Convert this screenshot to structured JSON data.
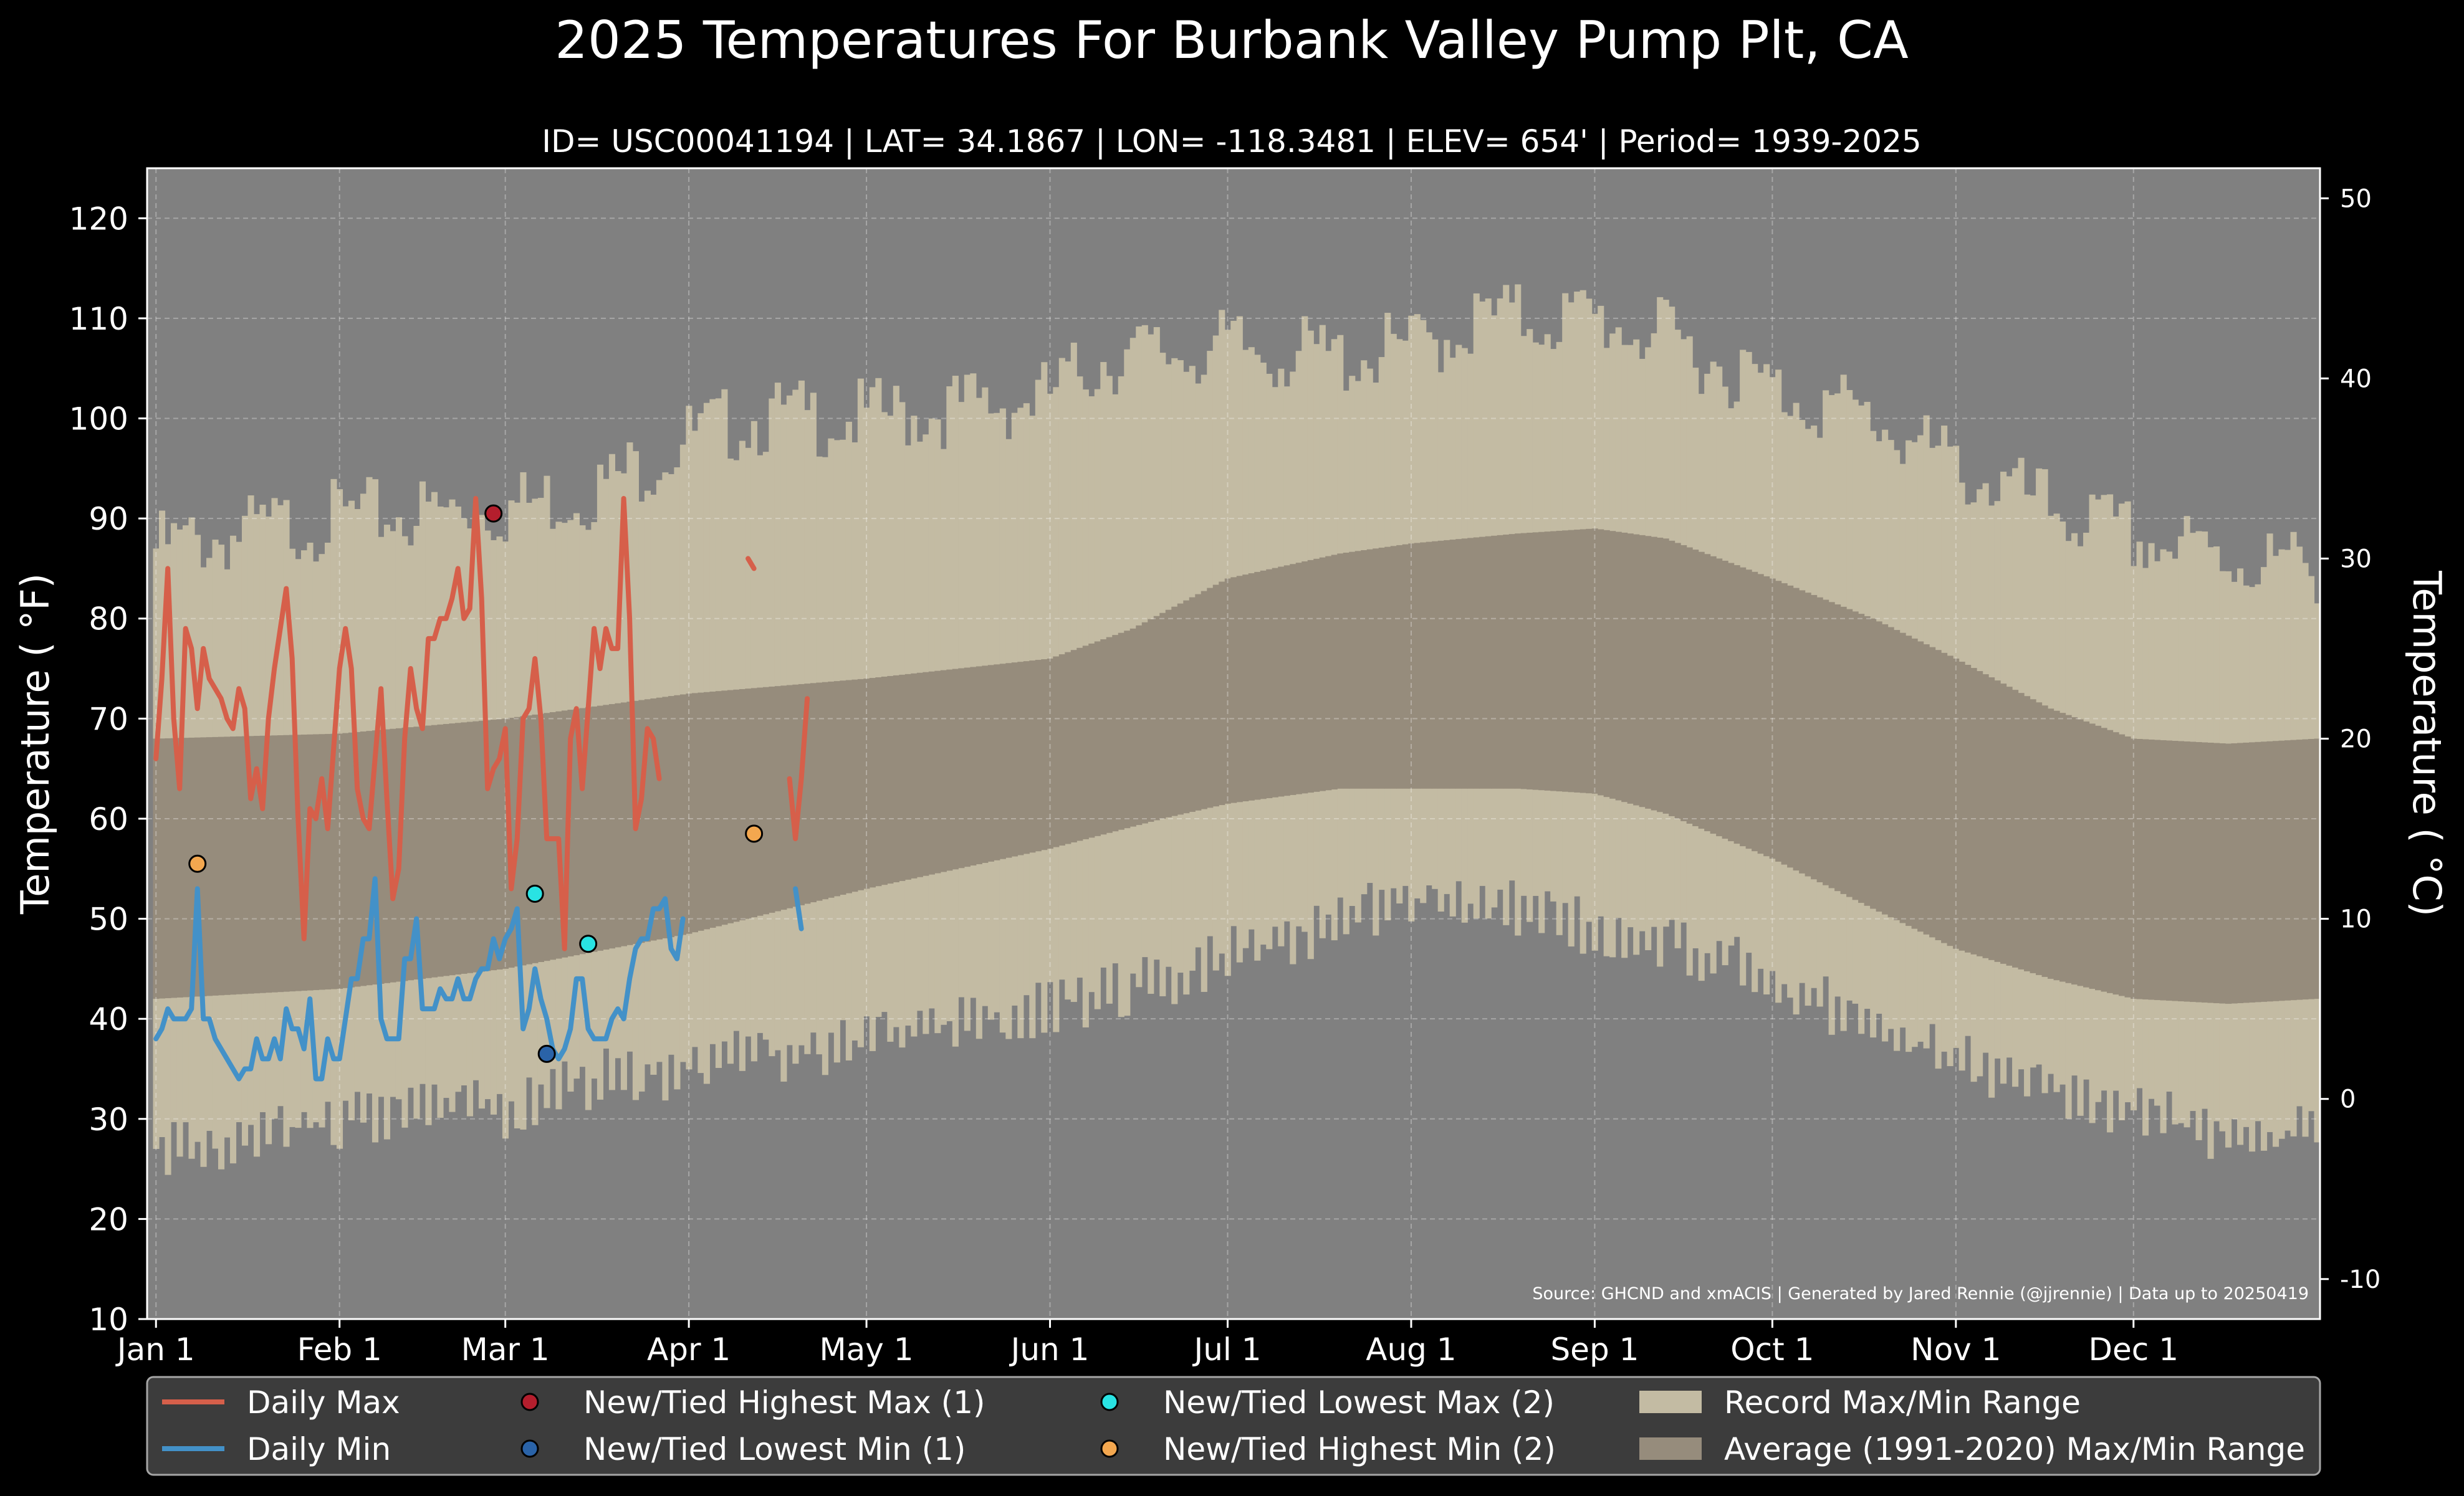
{
  "chart_data": {
    "type": "line",
    "title": "2025 Temperatures For Burbank Valley Pump Plt, CA",
    "subtitle": "ID= USC00041194 | LAT= 34.1867 | LON= -118.3481 | ELEV= 654' | Period= 1939-2025",
    "ylabel": "Temperature ( °F)",
    "ylabel_right": "Temperature ( °C)",
    "source": "Source: GHCND and xmACIS | Generated by Jared Rennie (@jjrennie) | Data up to 20250419",
    "ylim": [
      10,
      125
    ],
    "ylim_right_c": [
      -12.22,
      51.67
    ],
    "xlim_day": [
      -1.5,
      365.5
    ],
    "yticks": [
      10,
      20,
      30,
      40,
      50,
      60,
      70,
      80,
      90,
      100,
      110,
      120
    ],
    "yticks_right": [
      -10,
      0,
      10,
      20,
      30,
      40,
      50
    ],
    "xticks": [
      {
        "label": "Jan 1",
        "day": 0
      },
      {
        "label": "Feb 1",
        "day": 31
      },
      {
        "label": "Mar 1",
        "day": 59
      },
      {
        "label": "Apr 1",
        "day": 90
      },
      {
        "label": "May 1",
        "day": 120
      },
      {
        "label": "Jun 1",
        "day": 151
      },
      {
        "label": "Jul 1",
        "day": 181
      },
      {
        "label": "Aug 1",
        "day": 212
      },
      {
        "label": "Sep 1",
        "day": 243
      },
      {
        "label": "Oct 1",
        "day": 273
      },
      {
        "label": "Nov 1",
        "day": 304
      },
      {
        "label": "Dec 1",
        "day": 334
      }
    ],
    "grid": true,
    "legend_position": "below",
    "colors": {
      "background": "#000000",
      "plot_bg": "#808080",
      "record_range": "#c3bba3",
      "normal_range": "#968c7c",
      "daily_max": "#d65f4a",
      "daily_min": "#4391c8",
      "highest_max": "#b41e2d",
      "lowest_min": "#2a63a8",
      "lowest_max": "#29e3e3",
      "highest_min": "#f3a74f"
    },
    "record_max": {
      "anchors_day": [
        0,
        30,
        59,
        75,
        90,
        100,
        120,
        150,
        160,
        181,
        200,
        212,
        225,
        243,
        255,
        273,
        290,
        304,
        320,
        334,
        350,
        365
      ],
      "anchors_f": [
        87,
        90,
        91,
        93,
        98,
        100,
        100,
        102,
        106,
        107,
        106,
        107,
        110,
        110,
        108,
        103,
        100,
        95,
        91,
        88,
        86,
        85
      ]
    },
    "record_min": {
      "anchors_day": [
        0,
        15,
        31,
        50,
        59,
        75,
        90,
        110,
        130,
        150,
        170,
        190,
        212,
        230,
        243,
        260,
        273,
        290,
        304,
        320,
        334,
        350,
        365
      ],
      "anchors_f": [
        27,
        28,
        30,
        32,
        31,
        34,
        35,
        37,
        39,
        41,
        44,
        48,
        52,
        51,
        49,
        47,
        44,
        39,
        36,
        33,
        31,
        28,
        29
      ]
    },
    "normal_max": {
      "anchors_day": [
        0,
        31,
        59,
        90,
        120,
        151,
        165,
        181,
        200,
        212,
        230,
        243,
        255,
        273,
        290,
        304,
        320,
        334,
        350,
        365
      ],
      "anchors_f": [
        68,
        68.5,
        70,
        72.5,
        74,
        76,
        79,
        84,
        86.5,
        87.5,
        88.5,
        89,
        88,
        84,
        80,
        76,
        71,
        68,
        67.5,
        68
      ]
    },
    "normal_min": {
      "anchors_day": [
        0,
        31,
        59,
        90,
        120,
        151,
        170,
        181,
        200,
        212,
        230,
        243,
        255,
        273,
        290,
        304,
        320,
        334,
        350,
        365
      ],
      "anchors_f": [
        42,
        43,
        45,
        48.5,
        53,
        57,
        60,
        61.5,
        63,
        63,
        63,
        62.5,
        60.5,
        56,
        51,
        47,
        44,
        42,
        41.5,
        42
      ]
    },
    "series": [
      {
        "name": "Daily Max",
        "day": [
          0,
          1,
          2,
          3,
          4,
          5,
          6,
          7,
          8,
          9,
          10,
          11,
          12,
          13,
          14,
          15,
          16,
          17,
          18,
          19,
          20,
          21,
          22,
          23,
          24,
          25,
          26,
          27,
          28,
          29,
          30,
          31,
          32,
          33,
          34,
          35,
          36,
          37,
          38,
          39,
          40,
          41,
          42,
          43,
          44,
          45,
          46,
          47,
          48,
          49,
          50,
          51,
          52,
          53,
          54,
          55,
          56,
          57,
          58,
          59,
          60,
          61,
          62,
          63,
          64,
          65,
          66,
          67,
          68,
          69,
          70,
          71,
          72,
          73,
          74,
          75,
          76,
          77,
          78,
          79,
          80,
          81,
          82,
          83,
          84,
          85,
          86,
          87,
          88,
          89
        ],
        "values": [
          66,
          74,
          85,
          70,
          63,
          79,
          77,
          71,
          77,
          74,
          73,
          72,
          70,
          69,
          73,
          71,
          62,
          65,
          61,
          70,
          75,
          79,
          83,
          76,
          60,
          48,
          61,
          60,
          64,
          59,
          67,
          75,
          79,
          75,
          63,
          60,
          59,
          66,
          73,
          62,
          52,
          55,
          68,
          75,
          71,
          69,
          78,
          78,
          80,
          80,
          82,
          85,
          80,
          81,
          92,
          82,
          63,
          65,
          66,
          69,
          53,
          58,
          70,
          71,
          76,
          70,
          58,
          58,
          58,
          47,
          68,
          71,
          63,
          71,
          79,
          75,
          79,
          77,
          77,
          92,
          80,
          59,
          62,
          69,
          68,
          64
        ],
        "gaps": "days 86-89 not recorded"
      },
      {
        "name": "Daily Min",
        "day": [
          0,
          1,
          2,
          3,
          4,
          5,
          6,
          7,
          8,
          9,
          10,
          11,
          12,
          13,
          14,
          15,
          16,
          17,
          18,
          19,
          20,
          21,
          22,
          23,
          24,
          25,
          26,
          27,
          28,
          29,
          30,
          31,
          32,
          33,
          34,
          35,
          36,
          37,
          38,
          39,
          40,
          41,
          42,
          43,
          44,
          45,
          46,
          47,
          48,
          49,
          50,
          51,
          52,
          53,
          54,
          55,
          56,
          57,
          58,
          59,
          60,
          61,
          62,
          63,
          64,
          65,
          66,
          67,
          68,
          69,
          70,
          71,
          72,
          73,
          74,
          75,
          76,
          77,
          78,
          79,
          80,
          81,
          82,
          83,
          84,
          85,
          86,
          87,
          88,
          89
        ],
        "values": [
          38,
          39,
          41,
          40,
          40,
          40,
          41,
          53,
          40,
          40,
          38,
          37,
          36,
          35,
          34,
          35,
          35,
          38,
          36,
          36,
          38,
          36,
          41,
          39,
          39,
          37,
          42,
          34,
          34,
          38,
          36,
          36,
          40,
          44,
          44,
          48,
          48,
          54,
          40,
          38,
          38,
          38,
          46,
          46,
          50,
          41,
          41,
          41,
          43,
          42,
          42,
          44,
          42,
          42,
          44,
          45,
          45,
          48,
          46,
          48,
          49,
          51,
          39,
          41,
          45,
          42,
          40,
          37,
          36,
          37,
          39,
          44,
          44,
          39,
          38,
          38,
          38,
          40,
          41,
          40,
          44,
          47,
          48,
          48,
          51,
          51,
          52,
          47,
          46,
          50
        ],
        "gaps": "none"
      },
      {
        "name": "Daily Max",
        "day": [
          100,
          101,
          107,
          108,
          109,
          110
        ],
        "values": [
          86,
          85,
          64,
          58,
          64,
          72
        ]
      },
      {
        "name": "Daily Min",
        "day": [
          108,
          109
        ],
        "values": [
          53,
          49
        ]
      }
    ],
    "markers": [
      {
        "legend": "New/Tied Highest Max (1)",
        "kind": "highest_max",
        "points": [
          {
            "day": 57,
            "value": 90.5
          }
        ]
      },
      {
        "legend": "New/Tied Lowest Min (1)",
        "kind": "lowest_min",
        "points": [
          {
            "day": 66,
            "value": 36.5
          }
        ]
      },
      {
        "legend": "New/Tied Lowest Max (2)",
        "kind": "lowest_max",
        "points": [
          {
            "day": 64,
            "value": 52.5
          },
          {
            "day": 73,
            "value": 47.5
          }
        ]
      },
      {
        "legend": "New/Tied Highest Min (2)",
        "kind": "highest_min",
        "points": [
          {
            "day": 7,
            "value": 55.5
          },
          {
            "day": 101,
            "value": 58.5
          }
        ]
      }
    ],
    "legend": [
      {
        "label": "Daily Max",
        "kind": "line",
        "color": "#d65f4a"
      },
      {
        "label": "Daily Min",
        "kind": "line",
        "color": "#4391c8"
      },
      {
        "label": "New/Tied Highest Max (1)",
        "kind": "dot",
        "color": "#b41e2d"
      },
      {
        "label": "New/Tied Lowest Min (1)",
        "kind": "dot",
        "color": "#2a63a8"
      },
      {
        "label": "New/Tied Lowest Max (2)",
        "kind": "dot",
        "color": "#29e3e3"
      },
      {
        "label": "New/Tied Highest Min (2)",
        "kind": "dot",
        "color": "#f3a74f"
      },
      {
        "label": "Record Max/Min Range",
        "kind": "patch",
        "color": "#c3bba3"
      },
      {
        "label": "Average (1991-2020) Max/Min Range",
        "kind": "patch",
        "color": "#968c7c"
      }
    ]
  }
}
